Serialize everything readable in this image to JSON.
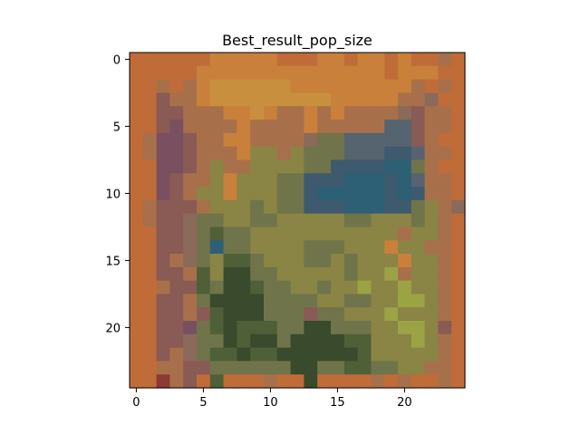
{
  "chart_data": {
    "type": "heatmap",
    "title": "Best_result_pop_size",
    "xlabel": "",
    "ylabel": "",
    "rows": 25,
    "cols": 25,
    "x_ticks": [
      0,
      5,
      10,
      15,
      20
    ],
    "y_ticks": [
      0,
      5,
      10,
      15,
      20
    ],
    "xlim": [
      -0.5,
      24.5
    ],
    "ylim": [
      24.5,
      -0.5
    ],
    "grid": false,
    "palette": {
      "O": "#c06c38",
      "D": "#c9803a",
      "Y": "#c8903e",
      "B": "#a8704a",
      "P": "#8a5a55",
      "M": "#7a5060",
      "G": "#8a8445",
      "E": "#70744a",
      "F": "#4f6038",
      "K": "#3a4a2c",
      "C": "#3e5a6e",
      "T": "#2e6075",
      "S": "#566470",
      "L": "#9ca345",
      "R": "#8c3a35",
      "A": "#8a6a5a"
    },
    "pixels": [
      "OOOOOODDDDDOOODDODDODOOBO",
      "OOOOODDDDDDDDDDDDDDODDDOO",
      "OOBOBDYYYYYYDDDDDDDDDBOBO",
      "OOPBBDYYYYYYYYYDDDDDBBAOO",
      "OOPPBBBDDYDBBDBDBBBBAPBBO",
      "OOPMBBBBDBBBBDBBBBBSSPBBO",
      "OBMMPBBDDBBBBAEESSSSSPBOO",
      "OBMMPBBBDGGBGEEESSSCCSBBO",
      "OOMMPBGBBGGGGEECCCCTTEBOO",
      "OOMPBBGDGGGEECCCTTTCTSBBO",
      "OOMPBGGDGGGEECTTTTTCTCBBO",
      "OBPPPBGGGEGEECCCTTTCCEGBA",
      "OBPPAEEGGEEGGGGGEEGGGEGBO",
      "OOPPAEFEEGGGGGGGGGGGBGGBO",
      "OOPPAETEEGGGGEEEGGGDGGBBO",
      "OOPBAEGFFEGGGEEGEGGGDGGBO",
      "OOPPBFGKKEEGGGGGEGGLBGGBO",
      "OOBPPFEKKFEEGGEGGLGGLGGBO",
      "OOPPBEKKKKEEEEGGEEGGLLGBO",
      "OOPPBPFKKKEEEPEEGGGLGGGBO",
      "OOPPMEFKFFFEEKKEEEGGLLGPO",
      "OOPPAEEKFKKEKKKKFFGGGLGBO",
      "OOPBAEFFKFFKKKKKKFGGGGGBO",
      "OOBBPPEEEEEEKKEEFFEEGGBBO",
      "OORBPOFOOOBOOKOOOOBOBOOBO"
    ]
  }
}
